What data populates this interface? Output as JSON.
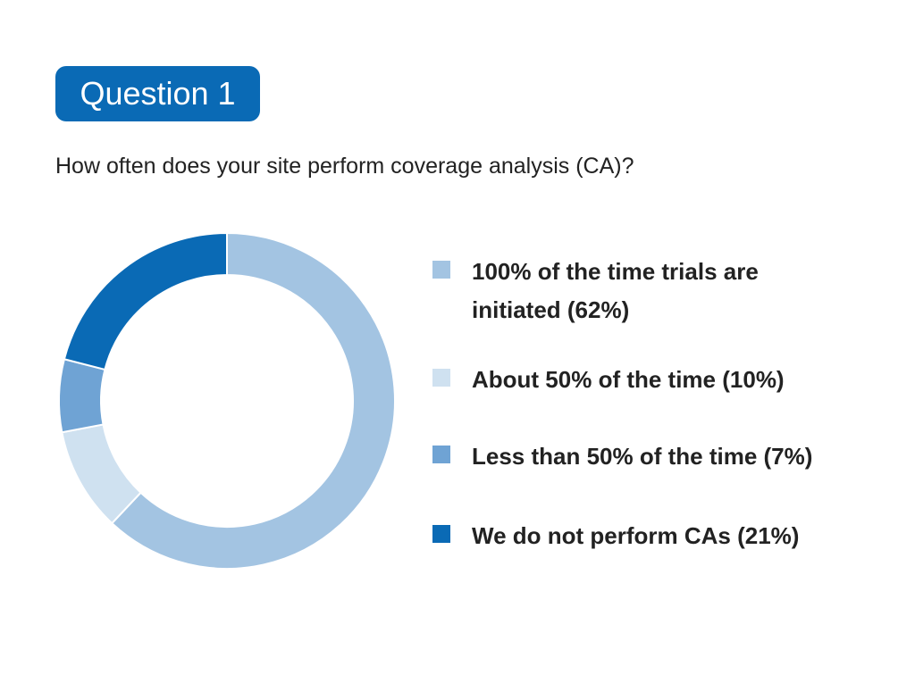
{
  "chart_data": {
    "type": "donut",
    "title": "Question 1",
    "subtitle": "How often does your site perform coverage analysis (CA)?",
    "categories": [
      "100% of the time trials are initiated (62%)",
      "About 50% of the time (10%)",
      "Less than 50% of the time (7%)",
      "We do not perform CAs (21%)"
    ],
    "values": [
      62,
      10,
      7,
      21
    ],
    "colors": [
      "#a3c4e2",
      "#cfe1f0",
      "#6fa3d4",
      "#0a6ab5"
    ],
    "legend": "right"
  }
}
